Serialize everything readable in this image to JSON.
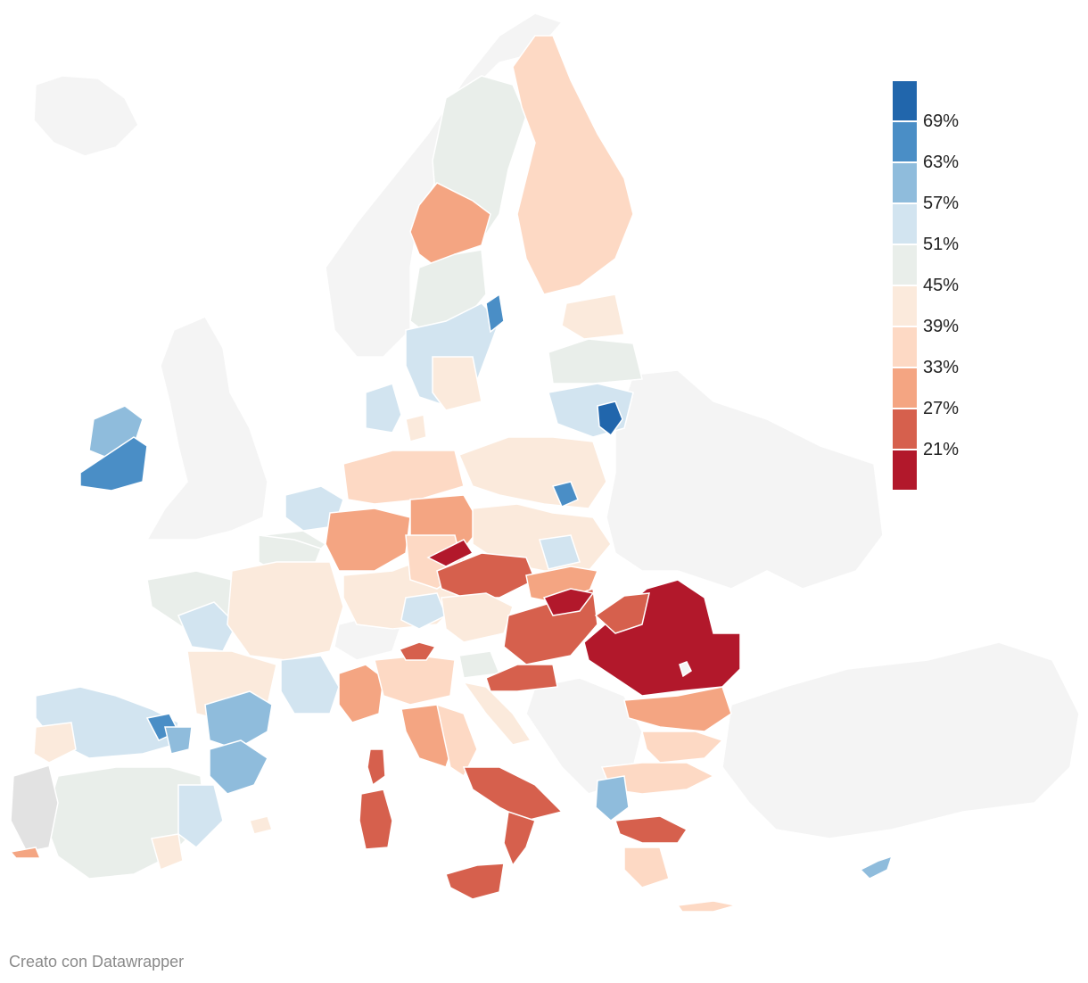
{
  "legend": {
    "colors": [
      "#2166ac",
      "#4a8ec6",
      "#8fbcdc",
      "#d2e4f0",
      "#e9eeea",
      "#fbeadc",
      "#fdd9c4",
      "#f4a582",
      "#d6604d",
      "#b2182b"
    ],
    "labels": [
      "69%",
      "63%",
      "57%",
      "51%",
      "45%",
      "39%",
      "33%",
      "27%",
      "21%"
    ]
  },
  "credit": "Creato con Datawrapper",
  "map_colors": {
    "non_eu": "#f4f4f4",
    "no_data": "#e2e2e2",
    "border": "#ffffff"
  }
}
